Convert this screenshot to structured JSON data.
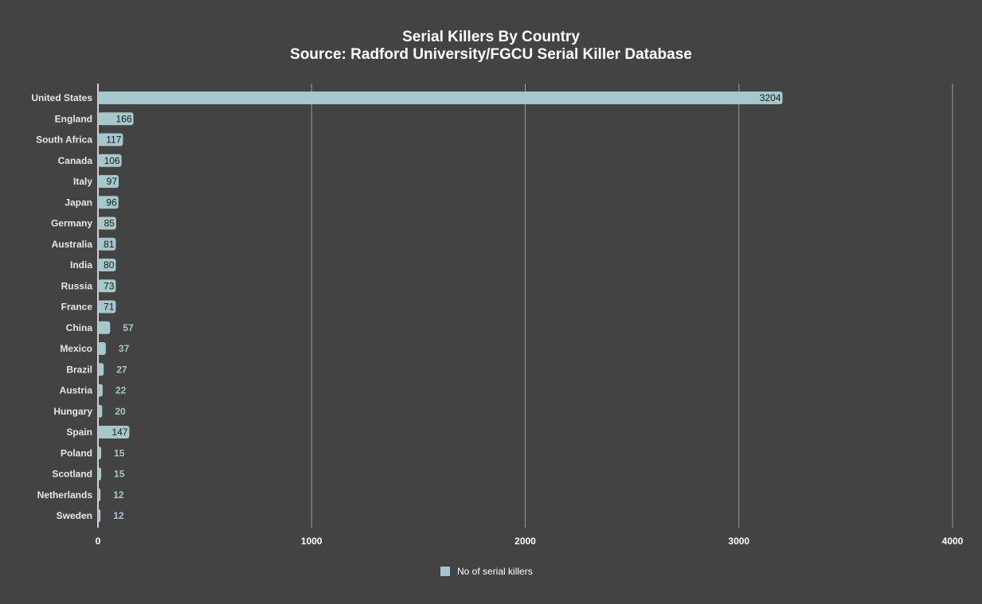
{
  "chart_data": {
    "type": "bar",
    "orientation": "horizontal",
    "title": "Serial Killers By Country",
    "subtitle": "Source: Radford University/FGCU Serial Killer Database",
    "categories": [
      "United States",
      "England",
      "South Africa",
      "Canada",
      "Italy",
      "Japan",
      "Germany",
      "Australia",
      "India",
      "Russia",
      "France",
      "China",
      "Mexico",
      "Brazil",
      "Austria",
      "Hungary",
      "Spain",
      "Poland",
      "Scotland",
      "Netherlands",
      "Sweden"
    ],
    "series": [
      {
        "name": "No of serial killers",
        "values": [
          3204,
          166,
          117,
          106,
          97,
          96,
          85,
          81,
          80,
          73,
          71,
          57,
          37,
          27,
          22,
          20,
          147,
          15,
          15,
          12,
          12
        ]
      }
    ],
    "xlim": [
      0,
      4000
    ],
    "xticks": [
      "0",
      "1000",
      "2000",
      "3000",
      "4000"
    ],
    "grid": true,
    "legend": "bottom",
    "colors": {
      "bar": "#a4c8cb",
      "background": "#434343",
      "inside_label": "#1a1a1a",
      "outside_label": "#a4c8cb",
      "grid": "#9a9a9a"
    }
  }
}
